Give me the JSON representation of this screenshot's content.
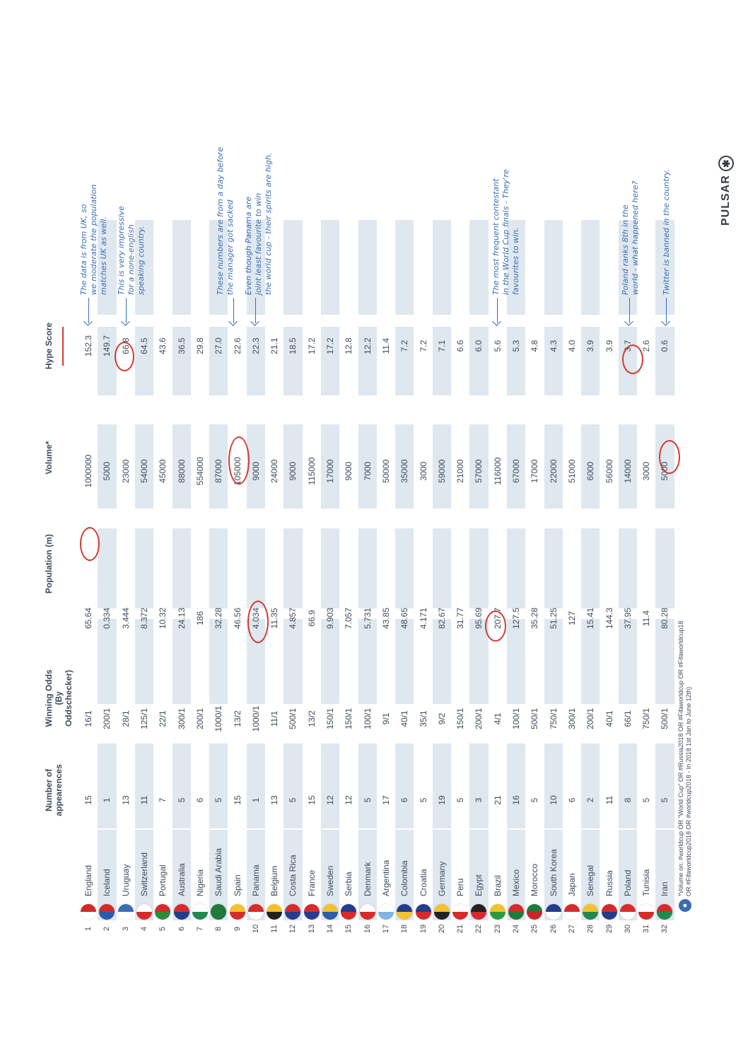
{
  "headers": {
    "appearances": "Number of appearences",
    "odds": "Winning Odds (By Oddschecker)",
    "population": "Population (m)",
    "volume": "Volume*",
    "hype": "Hype Score"
  },
  "rows": [
    {
      "rank": "1",
      "country": "England",
      "appearances": "15",
      "odds": "16/1",
      "population": "65.64",
      "volume": "1000000",
      "hype": "152.3",
      "flag": [
        "#ffffff",
        "#d02a2a"
      ]
    },
    {
      "rank": "2",
      "country": "Iceland",
      "appearances": "1",
      "odds": "200/1",
      "population": "0.334",
      "volume": "5000",
      "hype": "149.7",
      "flag": [
        "#2a5caa",
        "#d02a2a"
      ]
    },
    {
      "rank": "3",
      "country": "Uruguay",
      "appearances": "13",
      "odds": "28/1",
      "population": "3.444",
      "volume": "23000",
      "hype": "66.8",
      "flag": [
        "#ffffff",
        "#3d6db5"
      ]
    },
    {
      "rank": "4",
      "country": "Switzerland",
      "appearances": "11",
      "odds": "125/1",
      "population": "8.372",
      "volume": "54000",
      "hype": "64.5",
      "flag": [
        "#d62b2b",
        "#ffffff"
      ]
    },
    {
      "rank": "5",
      "country": "Portugal",
      "appearances": "7",
      "odds": "22/1",
      "population": "10.32",
      "volume": "45000",
      "hype": "43.6",
      "flag": [
        "#2a8c3a",
        "#d62b2b"
      ]
    },
    {
      "rank": "6",
      "country": "Australia",
      "appearances": "5",
      "odds": "300/1",
      "population": "24.13",
      "volume": "88000",
      "hype": "36.5",
      "flag": [
        "#243c8c",
        "#d62b2b"
      ]
    },
    {
      "rank": "7",
      "country": "Nigeria",
      "appearances": "6",
      "odds": "200/1",
      "population": "186",
      "volume": "554000",
      "hype": "29.8",
      "flag": [
        "#1f8a4c",
        "#ffffff"
      ]
    },
    {
      "rank": "8",
      "country": "Saudi Arabia",
      "appearances": "5",
      "odds": "1000/1",
      "population": "32.28",
      "volume": "87000",
      "hype": "27.0",
      "flag": [
        "#1f7a3c",
        "#1f7a3c"
      ]
    },
    {
      "rank": "9",
      "country": "Spain",
      "appearances": "15",
      "odds": "13/2",
      "population": "46.56",
      "volume": "105000",
      "hype": "22.6",
      "flag": [
        "#d62b2b",
        "#f2c12e"
      ]
    },
    {
      "rank": "10",
      "country": "Panama",
      "appearances": "1",
      "odds": "1000/1",
      "population": "4.034",
      "volume": "9000",
      "hype": "22.3",
      "flag": [
        "#ffffff",
        "#d62b2b"
      ]
    },
    {
      "rank": "11",
      "country": "Belgium",
      "appearances": "13",
      "odds": "11/1",
      "population": "11.35",
      "volume": "24000",
      "hype": "21.1",
      "flag": [
        "#222222",
        "#f2c12e"
      ]
    },
    {
      "rank": "12",
      "country": "Costa Rica",
      "appearances": "5",
      "odds": "500/1",
      "population": "4.857",
      "volume": "9000",
      "hype": "18.5",
      "flag": [
        "#243c8c",
        "#d62b2b"
      ]
    },
    {
      "rank": "13",
      "country": "France",
      "appearances": "15",
      "odds": "13/2",
      "population": "66.9",
      "volume": "115000",
      "hype": "17.2",
      "flag": [
        "#243c8c",
        "#d62b2b"
      ]
    },
    {
      "rank": "14",
      "country": "Sweden",
      "appearances": "12",
      "odds": "150/1",
      "population": "9.903",
      "volume": "17000",
      "hype": "17.2",
      "flag": [
        "#2a5caa",
        "#f2c12e"
      ]
    },
    {
      "rank": "15",
      "country": "Serbia",
      "appearances": "12",
      "odds": "150/1",
      "population": "7.057",
      "volume": "9000",
      "hype": "12.8",
      "flag": [
        "#d62b2b",
        "#243c8c"
      ]
    },
    {
      "rank": "16",
      "country": "Denmark",
      "appearances": "5",
      "odds": "100/1",
      "population": "5.731",
      "volume": "7000",
      "hype": "12.2",
      "flag": [
        "#d62b2b",
        "#ffffff"
      ]
    },
    {
      "rank": "17",
      "country": "Argentina",
      "appearances": "17",
      "odds": "9/1",
      "population": "43.85",
      "volume": "50000",
      "hype": "11.4",
      "flag": [
        "#7fb3e0",
        "#ffffff"
      ]
    },
    {
      "rank": "18",
      "country": "Colombia",
      "appearances": "6",
      "odds": "40/1",
      "population": "48.65",
      "volume": "35000",
      "hype": "7.2",
      "flag": [
        "#f2c12e",
        "#243c8c"
      ]
    },
    {
      "rank": "19",
      "country": "Croatia",
      "appearances": "5",
      "odds": "35/1",
      "population": "4.171",
      "volume": "3000",
      "hype": "7.2",
      "flag": [
        "#d62b2b",
        "#243c8c"
      ]
    },
    {
      "rank": "20",
      "country": "Germany",
      "appearances": "19",
      "odds": "9/2",
      "population": "82.67",
      "volume": "59000",
      "hype": "7.1",
      "flag": [
        "#222222",
        "#f2c12e"
      ]
    },
    {
      "rank": "21",
      "country": "Peru",
      "appearances": "5",
      "odds": "150/1",
      "population": "31.77",
      "volume": "21000",
      "hype": "6.6",
      "flag": [
        "#d62b2b",
        "#ffffff"
      ]
    },
    {
      "rank": "22",
      "country": "Egypt",
      "appearances": "3",
      "odds": "200/1",
      "population": "95.69",
      "volume": "57000",
      "hype": "6.0",
      "flag": [
        "#d62b2b",
        "#222222"
      ]
    },
    {
      "rank": "23",
      "country": "Brazil",
      "appearances": "21",
      "odds": "4/1",
      "population": "207.7",
      "volume": "116000",
      "hype": "5.6",
      "flag": [
        "#2a9a3a",
        "#f2c12e"
      ]
    },
    {
      "rank": "24",
      "country": "Mexico",
      "appearances": "16",
      "odds": "100/1",
      "population": "127.5",
      "volume": "67000",
      "hype": "5.3",
      "flag": [
        "#1f7a3c",
        "#d62b2b"
      ]
    },
    {
      "rank": "25",
      "country": "Morocco",
      "appearances": "5",
      "odds": "500/1",
      "population": "35.28",
      "volume": "17000",
      "hype": "4.8",
      "flag": [
        "#c8262a",
        "#1f7a3c"
      ]
    },
    {
      "rank": "26",
      "country": "South Korea",
      "appearances": "10",
      "odds": "750/1",
      "population": "51.25",
      "volume": "22000",
      "hype": "4.3",
      "flag": [
        "#ffffff",
        "#243c8c"
      ]
    },
    {
      "rank": "27",
      "country": "Japan",
      "appearances": "6",
      "odds": "300/1",
      "population": "127",
      "volume": "51000",
      "hype": "4.0",
      "flag": [
        "#ffffff",
        "#d62b2b"
      ]
    },
    {
      "rank": "28",
      "country": "Senegal",
      "appearances": "2",
      "odds": "200/1",
      "population": "15.41",
      "volume": "6000",
      "hype": "3.9",
      "flag": [
        "#1f8a4c",
        "#f2c12e"
      ]
    },
    {
      "rank": "29",
      "country": "Russia",
      "appearances": "11",
      "odds": "40/1",
      "population": "144.3",
      "volume": "56000",
      "hype": "3.9",
      "flag": [
        "#243c8c",
        "#d62b2b"
      ]
    },
    {
      "rank": "30",
      "country": "Poland",
      "appearances": "8",
      "odds": "66/1",
      "population": "37.95",
      "volume": "14000",
      "hype": "3.7",
      "flag": [
        "#ffffff",
        "#d62b2b"
      ]
    },
    {
      "rank": "31",
      "country": "Tunisia",
      "appearances": "5",
      "odds": "750/1",
      "population": "11.4",
      "volume": "3000",
      "hype": "2.6",
      "flag": [
        "#d62b2b",
        "#ffffff"
      ]
    },
    {
      "rank": "32",
      "country": "Iran",
      "appearances": "5",
      "odds": "500/1",
      "population": "80.28",
      "volume": "5000",
      "hype": "0.6",
      "flag": [
        "#1f8a4c",
        "#d62b2b"
      ]
    }
  ],
  "notes": {
    "england": [
      "The data is from UK, so",
      "we moderate the population",
      "matches UK as well."
    ],
    "uruguay": [
      "This is very impressive",
      "for a none-english",
      "speaking country."
    ],
    "spain": [
      "These numbers are from a day before",
      "the manager got sacked"
    ],
    "panama": [
      "Even though Panama are",
      "joint least favourite to win",
      "the world cup - their spirits are high."
    ],
    "brazil": [
      "The most frequent contestant",
      "in the World Cup finals - They're",
      "favourites to win."
    ],
    "poland": [
      "Poland ranks 8th in the",
      "world - what happened here?"
    ],
    "iran": [
      "Twitter is banned in the country."
    ]
  },
  "footnote": [
    "*Volume on: #worldcup OR \"World Cup\" OR #Russia2018 OR #Fifaworldcup OR #Fifaworldcup18",
    "OR #Fifaworldcup2018 OR #worldcup2018 - In 2018 1st Jan to June 12th)"
  ],
  "logo": "PULSAR"
}
